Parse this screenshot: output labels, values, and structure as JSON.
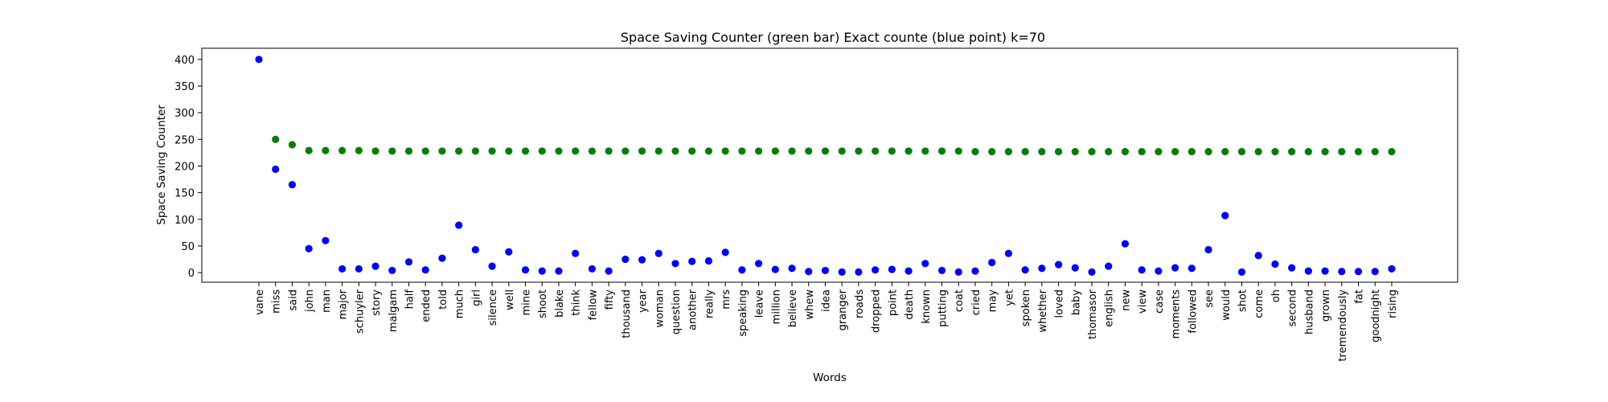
{
  "chart_data": {
    "type": "scatter",
    "title": "Space Saving Counter (green bar)  Exact counte (blue point) k=70",
    "xlabel": "Words",
    "ylabel": "Space Saving Counter",
    "ylim": [
      -18,
      421
    ],
    "yticks": [
      0,
      50,
      100,
      150,
      200,
      250,
      300,
      350,
      400
    ],
    "grid": false,
    "categories": [
      "vane",
      "miss",
      "said",
      "john",
      "man",
      "major",
      "schuyler",
      "story",
      "malgam",
      "half",
      "ended",
      "told",
      "much",
      "girl",
      "silence",
      "well",
      "mine",
      "shoot",
      "blake",
      "think",
      "fellow",
      "fifty",
      "thousand",
      "year",
      "woman",
      "question",
      "another",
      "really",
      "mrs",
      "speaking",
      "leave",
      "million",
      "believe",
      "whew",
      "idea",
      "granger",
      "roads",
      "dropped",
      "point",
      "death",
      "known",
      "putting",
      "coat",
      "cried",
      "may",
      "yet",
      "spoken",
      "whether",
      "loved",
      "baby",
      "thomasor",
      "english",
      "new",
      "view",
      "case",
      "moments",
      "followed",
      "see",
      "would",
      "shot",
      "come",
      "oh",
      "second",
      "husband",
      "grown",
      "tremendously",
      "fat",
      "goodnight",
      "rising"
    ],
    "series": [
      {
        "color": "#008000",
        "values": [
          null,
          250,
          240,
          229,
          229,
          229,
          229,
          228,
          228,
          228,
          228,
          228,
          228,
          228,
          228,
          228,
          228,
          228,
          228,
          228,
          228,
          228,
          228,
          228,
          228,
          228,
          228,
          228,
          228,
          228,
          228,
          228,
          228,
          228,
          228,
          228,
          228,
          228,
          228,
          228,
          228,
          228,
          228,
          227,
          227,
          227,
          227,
          227,
          227,
          227,
          227,
          227,
          227,
          227,
          227,
          227,
          227,
          227,
          227,
          227,
          227,
          227,
          227,
          227,
          227,
          227,
          227,
          227,
          227
        ]
      },
      {
        "color": "#0000ff",
        "values": [
          400,
          194,
          165,
          45,
          60,
          7,
          7,
          12,
          4,
          20,
          5,
          27,
          89,
          43,
          12,
          39,
          5,
          3,
          3,
          36,
          7,
          3,
          25,
          24,
          36,
          17,
          21,
          22,
          38,
          5,
          17,
          6,
          8,
          2,
          4,
          1,
          1,
          5,
          6,
          3,
          17,
          4,
          1,
          3,
          19,
          36,
          5,
          8,
          15,
          9,
          1,
          12,
          54,
          5,
          3,
          9,
          8,
          43,
          107,
          1,
          32,
          16,
          9,
          3,
          3,
          2,
          2,
          2,
          7
        ]
      }
    ]
  }
}
